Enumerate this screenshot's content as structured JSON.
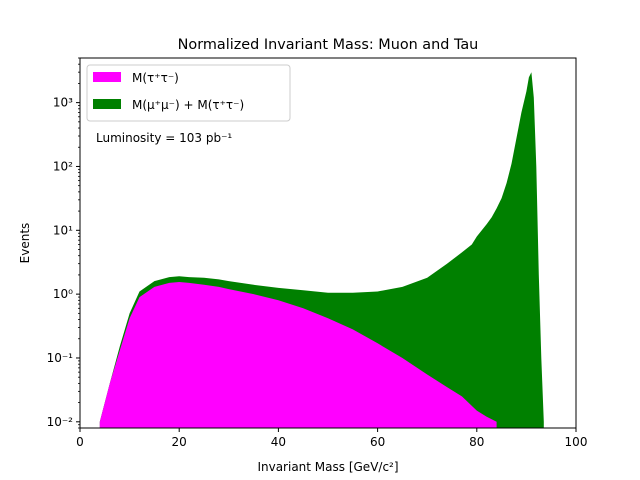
{
  "chart_data": {
    "type": "area",
    "title": "Normalized Invariant Mass: Muon and Tau",
    "xlabel": "Invariant Mass [GeV/c²]",
    "ylabel": "Events",
    "xlim": [
      0,
      100
    ],
    "ylim": [
      0.008,
      5000
    ],
    "yscale": "log",
    "grid": false,
    "legend_placement": "top-left",
    "x_ticks": [
      "0",
      "20",
      "40",
      "60",
      "80",
      "100"
    ],
    "y_ticks": [
      "10⁻²",
      "10⁻¹",
      "10⁰",
      "10¹",
      "10²",
      "10³"
    ],
    "x_tick_values": [
      0,
      20,
      40,
      60,
      80,
      100
    ],
    "y_tick_exponents": [
      -2,
      -1,
      0,
      1,
      2,
      3
    ],
    "annotation": "Luminosity = 103 pb⁻¹",
    "series": [
      {
        "name": "M(μ⁺μ⁻) + M(τ⁺τ⁻)",
        "color": "#008000",
        "x": [
          4,
          6,
          8,
          10,
          12,
          15,
          18,
          20,
          22,
          25,
          28,
          30,
          35,
          40,
          45,
          50,
          55,
          60,
          65,
          70,
          74,
          77,
          79,
          80,
          81,
          82,
          83,
          84,
          85,
          86,
          87,
          88,
          89,
          90,
          90.5,
          91,
          91.5,
          92,
          92.5,
          93,
          93.5
        ],
        "y": [
          0.01,
          0.04,
          0.15,
          0.5,
          1.1,
          1.6,
          1.85,
          1.9,
          1.85,
          1.8,
          1.7,
          1.6,
          1.4,
          1.25,
          1.15,
          1.05,
          1.05,
          1.1,
          1.3,
          1.8,
          3,
          4.5,
          6,
          8,
          10,
          12.5,
          16,
          22,
          32,
          55,
          110,
          280,
          700,
          1500,
          2500,
          3000,
          1200,
          100,
          2,
          0.1,
          0.01
        ]
      },
      {
        "name": "M(τ⁺τ⁻)",
        "color": "#ff00ff",
        "x": [
          4,
          6,
          8,
          10,
          12,
          15,
          18,
          20,
          22,
          25,
          28,
          30,
          35,
          40,
          45,
          50,
          55,
          60,
          65,
          70,
          74,
          77,
          80,
          82,
          84
        ],
        "y": [
          0.01,
          0.04,
          0.13,
          0.42,
          0.9,
          1.3,
          1.5,
          1.55,
          1.5,
          1.4,
          1.3,
          1.2,
          1.0,
          0.8,
          0.6,
          0.42,
          0.28,
          0.17,
          0.1,
          0.055,
          0.035,
          0.025,
          0.015,
          0.012,
          0.01
        ]
      }
    ]
  }
}
